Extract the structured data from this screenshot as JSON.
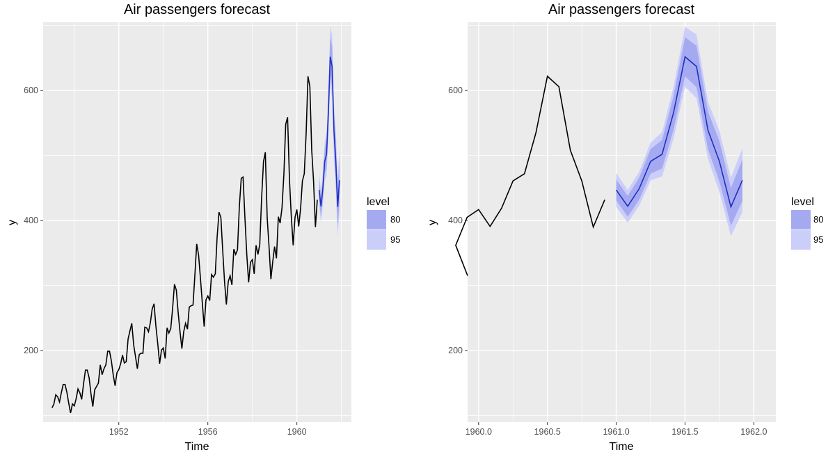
{
  "chart_data": [
    {
      "type": "line",
      "title": "Air passengers forecast",
      "xlabel": "Time",
      "ylabel": "y",
      "xlim": [
        1948.6,
        1962.45
      ],
      "ylim": [
        90,
        705
      ],
      "x_ticks": [
        1952,
        1956,
        1960
      ],
      "x_tick_labels": [
        "1952",
        "1956",
        "1960"
      ],
      "y_ticks": [
        200,
        400,
        600
      ],
      "y_tick_labels": [
        "200",
        "400",
        "600"
      ],
      "grid": true,
      "legend": {
        "title": "level",
        "position": "right",
        "entries": [
          "80",
          "95"
        ]
      },
      "colors": {
        "panel": "#ebebeb",
        "grid": "#ffffff",
        "history": "#000000",
        "forecast": "#1f2fc2",
        "band80": "#a5aaf0",
        "band95": "#cbcef9"
      },
      "history": {
        "start": 1949,
        "step": 0.0833333,
        "values": [
          112,
          118,
          132,
          129,
          121,
          135,
          148,
          148,
          136,
          119,
          104,
          118,
          115,
          126,
          141,
          135,
          125,
          149,
          170,
          170,
          158,
          133,
          114,
          140,
          145,
          150,
          178,
          163,
          172,
          178,
          199,
          199,
          184,
          162,
          146,
          166,
          171,
          180,
          193,
          181,
          183,
          218,
          230,
          242,
          209,
          191,
          172,
          194,
          196,
          196,
          236,
          235,
          229,
          243,
          264,
          272,
          237,
          211,
          180,
          201,
          204,
          188,
          235,
          227,
          234,
          264,
          302,
          293,
          259,
          229,
          203,
          229,
          242,
          233,
          267,
          269,
          270,
          315,
          364,
          347,
          312,
          274,
          237,
          278,
          284,
          277,
          317,
          313,
          318,
          374,
          413,
          405,
          355,
          306,
          271,
          306,
          315,
          301,
          356,
          348,
          355,
          422,
          465,
          467,
          404,
          347,
          305,
          336,
          340,
          318,
          362,
          348,
          363,
          435,
          491,
          505,
          404,
          359,
          310,
          337,
          360,
          342,
          406,
          396,
          420,
          472,
          548,
          559,
          463,
          407,
          362,
          405,
          417,
          391,
          419,
          461,
          472,
          535,
          622,
          606,
          508,
          461,
          390,
          432
        ]
      },
      "forecast": {
        "start": 1961,
        "step": 0.0833333,
        "mean": [
          447,
          422,
          449,
          491,
          502,
          566,
          652,
          637,
          539,
          491,
          421,
          462
        ],
        "lo80": [
          431,
          406,
          432,
          472,
          480,
          540,
          622,
          605,
          510,
          460,
          392,
          430
        ],
        "hi80": [
          463,
          438,
          466,
          510,
          524,
          592,
          682,
          669,
          568,
          522,
          450,
          494
        ],
        "lo95": [
          421,
          397,
          423,
          462,
          468,
          526,
          606,
          588,
          495,
          444,
          376,
          413
        ],
        "hi95": [
          473,
          447,
          475,
          520,
          536,
          606,
          698,
          686,
          583,
          538,
          466,
          511
        ]
      }
    },
    {
      "type": "line",
      "title": "Air passengers forecast",
      "xlabel": "Time",
      "ylabel": "y",
      "xlim": [
        1959.92,
        1962.16
      ],
      "ylim": [
        90,
        705
      ],
      "x_ticks": [
        1960.0,
        1960.5,
        1961.0,
        1961.5,
        1962.0
      ],
      "x_tick_labels": [
        "1960.0",
        "1960.5",
        "1961.0",
        "1961.5",
        "1962.0"
      ],
      "y_ticks": [
        200,
        400,
        600
      ],
      "y_tick_labels": [
        "200",
        "400",
        "600"
      ],
      "grid": true,
      "legend": {
        "title": "level",
        "position": "right",
        "entries": [
          "80",
          "95"
        ]
      }
    }
  ]
}
